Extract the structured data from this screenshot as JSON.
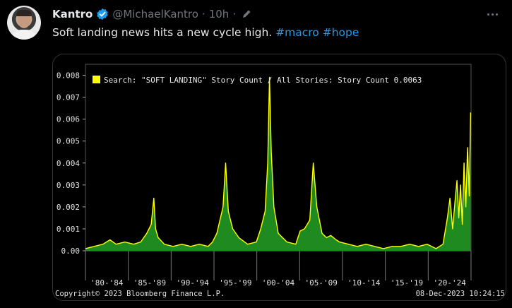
{
  "tweet": {
    "author_name": "Kantro",
    "handle": "@MichaelKantro",
    "separator": "·",
    "time": "10h",
    "text_main": "Soft landing news hits a new cycle high.",
    "hashtags": [
      "#macro",
      "#hope"
    ]
  },
  "icons": {
    "verified": "verified-badge-icon",
    "edit": "edited-pencil-icon",
    "more": "more-options-icon"
  },
  "colors": {
    "accent": "#1d9bf0",
    "series_line": "#ffff00",
    "series_fill": "#1f8a1f"
  },
  "chart_data": {
    "type": "area",
    "legend": "Search: \"SOFT LANDING\" Story Count / All Stories:  Story Count 0.0063",
    "footer_left": "Copyright© 2023 Bloomberg Finance L.P.",
    "footer_right": "08-Dec-2023 10:24:15",
    "ylim": [
      0,
      0.0085
    ],
    "yticks": [
      "0.008",
      "0.007",
      "0.006",
      "0.005",
      "0.004",
      "0.003",
      "0.002",
      "0.001",
      "0.00"
    ],
    "ytick_values": [
      0.008,
      0.007,
      0.006,
      0.005,
      0.004,
      0.003,
      0.002,
      0.001,
      0
    ],
    "categories": [
      "'80-'84",
      "'85-'89",
      "'90-'94",
      "'95-'99",
      "'00-'04",
      "'05-'09",
      "'10-'14",
      "'15-'19",
      "'20-'24"
    ],
    "xlim": [
      1980,
      2024
    ],
    "series": [
      {
        "x": [
          1980.0,
          1981.0,
          1982.0,
          1982.8,
          1983.5,
          1984.5,
          1985.5,
          1986.3,
          1987.0,
          1987.5,
          1987.8,
          1988.0,
          1988.3,
          1989.0,
          1990.0,
          1991.0,
          1992.0,
          1993.0,
          1994.0,
          1994.5,
          1995.0,
          1995.7,
          1996.0,
          1996.3,
          1996.8,
          1997.5,
          1998.5,
          1999.5,
          2000.0,
          2000.5,
          2000.8,
          2001.0,
          2001.2,
          2001.5,
          2002.0,
          2003.0,
          2004.0,
          2004.5,
          2005.0,
          2005.6,
          2006.0,
          2006.4,
          2007.0,
          2007.5,
          2008.0,
          2008.6,
          2009.0,
          2010.0,
          2011.0,
          2012.0,
          2013.0,
          2014.0,
          2015.0,
          2016.0,
          2017.0,
          2018.0,
          2019.0,
          2020.0,
          2020.8,
          2021.3,
          2021.6,
          2021.9,
          2022.2,
          2022.4,
          2022.6,
          2022.8,
          2023.0,
          2023.2,
          2023.4,
          2023.6,
          2023.8,
          2023.95
        ],
        "values": [
          0.0001,
          0.0002,
          0.0003,
          0.0005,
          0.0003,
          0.0004,
          0.0003,
          0.0004,
          0.0008,
          0.0012,
          0.0024,
          0.001,
          0.0006,
          0.0003,
          0.0002,
          0.0003,
          0.0002,
          0.0003,
          0.0002,
          0.0004,
          0.0008,
          0.002,
          0.004,
          0.0018,
          0.001,
          0.0006,
          0.0003,
          0.0004,
          0.001,
          0.0018,
          0.004,
          0.0079,
          0.0045,
          0.002,
          0.0008,
          0.0004,
          0.0003,
          0.0009,
          0.001,
          0.0014,
          0.004,
          0.002,
          0.0008,
          0.0006,
          0.0007,
          0.0005,
          0.0004,
          0.0003,
          0.0002,
          0.0003,
          0.0002,
          0.0001,
          0.0002,
          0.0002,
          0.0003,
          0.0002,
          0.0003,
          0.0001,
          0.0003,
          0.0015,
          0.0024,
          0.001,
          0.0024,
          0.0032,
          0.0015,
          0.003,
          0.0012,
          0.004,
          0.002,
          0.0047,
          0.0025,
          0.0063
        ]
      }
    ],
    "grid": false
  }
}
